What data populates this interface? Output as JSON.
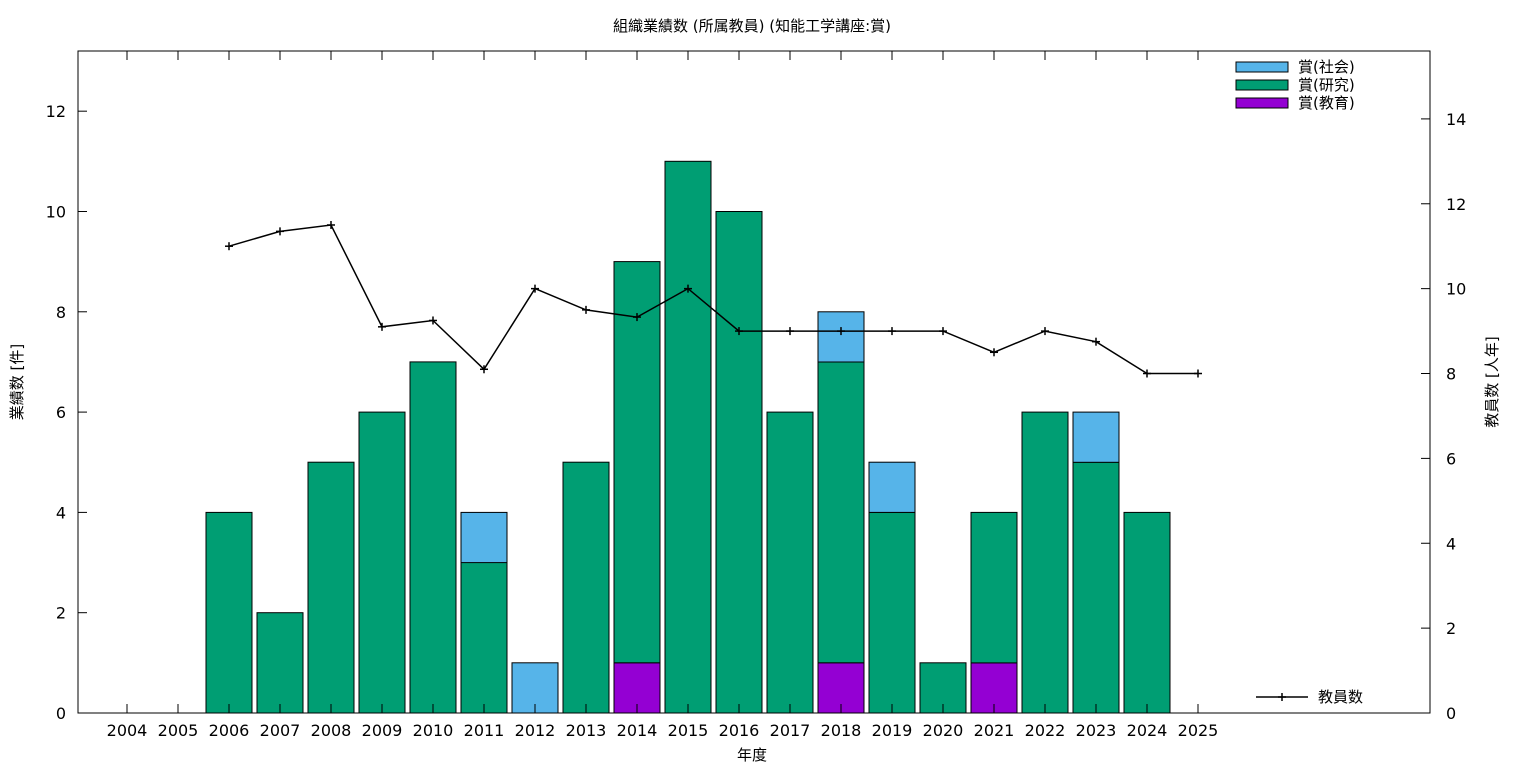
{
  "chart_data": {
    "type": "bar",
    "stacked": true,
    "title": "組織業績数 (所属教員) (知能工学講座:賞)",
    "xlabel": "年度",
    "ylabel": "業績数 [件]",
    "y2label": "教員数 [人年]",
    "ylim": [
      0,
      13.2
    ],
    "y2lim": [
      0,
      15.6
    ],
    "yticks": [
      0,
      2,
      4,
      6,
      8,
      10,
      12
    ],
    "y2ticks": [
      0,
      2,
      4,
      6,
      8,
      10,
      12,
      14
    ],
    "grid": false,
    "categories": [
      "2004",
      "2005",
      "2006",
      "2007",
      "2008",
      "2009",
      "2010",
      "2011",
      "2012",
      "2013",
      "2014",
      "2015",
      "2016",
      "2017",
      "2018",
      "2019",
      "2020",
      "2021",
      "2022",
      "2023",
      "2024",
      "2025"
    ],
    "series": [
      {
        "name": "賞(教育)",
        "color": "#9400d3",
        "values": [
          0,
          0,
          0,
          0,
          0,
          0,
          0,
          0,
          0,
          0,
          1,
          0,
          0,
          0,
          1,
          0,
          0,
          1,
          0,
          0,
          0,
          0
        ]
      },
      {
        "name": "賞(研究)",
        "color": "#009e73",
        "values": [
          0,
          0,
          4,
          2,
          5,
          6,
          7,
          3,
          0,
          5,
          8,
          11,
          10,
          6,
          6,
          4,
          1,
          3,
          6,
          5,
          4,
          0
        ]
      },
      {
        "name": "賞(社会)",
        "color": "#56b4e9",
        "values": [
          0,
          0,
          0,
          0,
          0,
          0,
          0,
          1,
          1,
          0,
          0,
          0,
          0,
          0,
          1,
          1,
          0,
          0,
          0,
          1,
          0,
          0
        ]
      }
    ],
    "legend_order": [
      2,
      1,
      0
    ],
    "legend_position": "top-right",
    "line_series": {
      "name": "教員数",
      "axis": "y2",
      "color": "#000000",
      "x": [
        "2006",
        "2007",
        "2008",
        "2009",
        "2010",
        "2011",
        "2012",
        "2013",
        "2014",
        "2015",
        "2016",
        "2017",
        "2018",
        "2019",
        "2020",
        "2021",
        "2022",
        "2023",
        "2024",
        "2025"
      ],
      "values": [
        11.0,
        11.35,
        11.5,
        9.1,
        9.25,
        8.1,
        10.0,
        9.5,
        9.33,
        10.0,
        9.0,
        9.0,
        9.0,
        9.0,
        9.0,
        8.5,
        9.0,
        8.75,
        8.0,
        8.0
      ],
      "legend_position": "bottom-right"
    }
  }
}
